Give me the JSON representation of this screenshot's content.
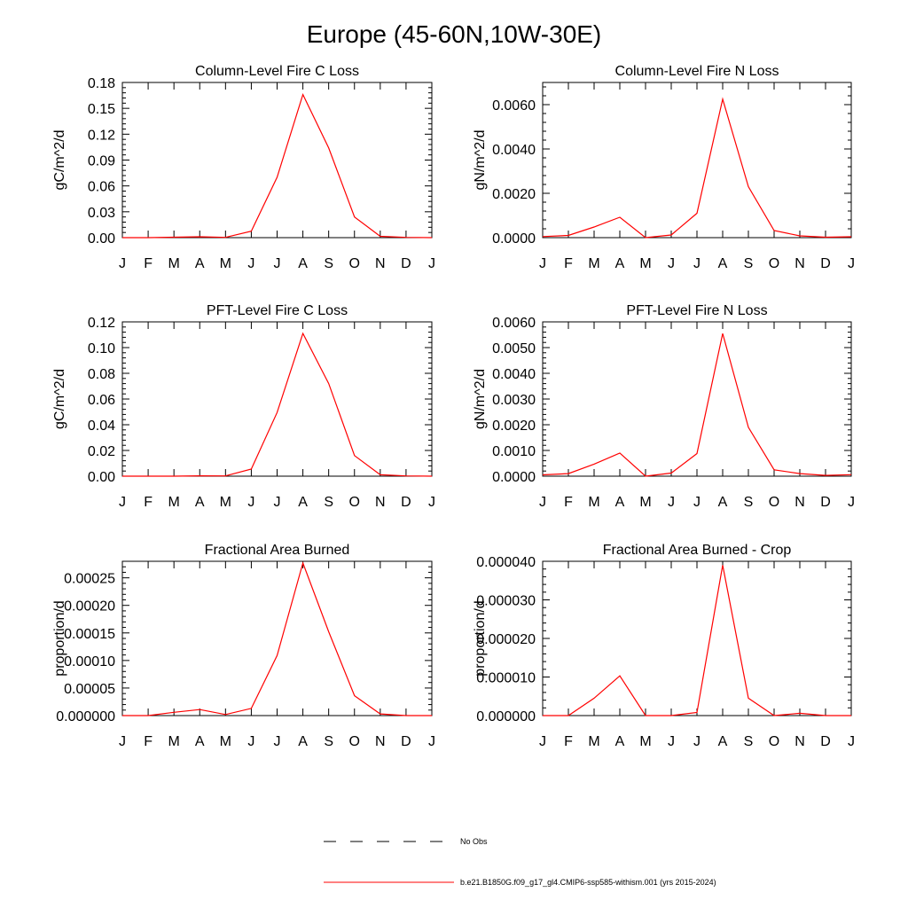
{
  "figure_title": "Europe (45-60N,10W-30E)",
  "months": [
    "J",
    "F",
    "M",
    "A",
    "M",
    "J",
    "J",
    "A",
    "S",
    "O",
    "N",
    "D",
    "J"
  ],
  "colors": {
    "series": "#ff0000",
    "axis": "#000000",
    "obs": "#000000"
  },
  "legend": {
    "obs_label": "No Obs",
    "model_label": "b.e21.B1850G.f09_g17_gl4.CMIP6-ssp585-withism.001 (yrs 2015-2024)"
  },
  "chart_data": [
    {
      "type": "line",
      "title": "Column-Level Fire C Loss",
      "ylabel": "gC/m^2/d",
      "ylim": [
        0,
        0.18
      ],
      "yticks": [
        "0.00",
        "0.03",
        "0.06",
        "0.09",
        "0.12",
        "0.15",
        "0.18"
      ],
      "x": [
        "J",
        "F",
        "M",
        "A",
        "M",
        "J",
        "J",
        "A",
        "S",
        "O",
        "N",
        "D",
        "J"
      ],
      "series": [
        {
          "values": [
            0,
            0,
            0.0005,
            0.001,
            0.0003,
            0.0075,
            0.07,
            0.166,
            0.104,
            0.024,
            0.0015,
            0.0003,
            0
          ]
        }
      ]
    },
    {
      "type": "line",
      "title": "Column-Level Fire N Loss",
      "ylabel": "gN/m^2/d",
      "ylim": [
        0,
        0.007
      ],
      "yticks": [
        "0.0000",
        "0.0020",
        "0.0040",
        "0.0060"
      ],
      "x": [
        "J",
        "F",
        "M",
        "A",
        "M",
        "J",
        "J",
        "A",
        "S",
        "O",
        "N",
        "D",
        "J"
      ],
      "series": [
        {
          "values": [
            5e-05,
            0.0001,
            0.00048,
            0.00092,
            0.0,
            0.00012,
            0.0011,
            0.00625,
            0.0023,
            0.00032,
            8e-05,
            2e-05,
            4e-05
          ]
        }
      ]
    },
    {
      "type": "line",
      "title": "PFT-Level Fire C Loss",
      "ylabel": "gC/m^2/d",
      "ylim": [
        0,
        0.12
      ],
      "yticks": [
        "0.00",
        "0.02",
        "0.04",
        "0.06",
        "0.08",
        "0.10",
        "0.12"
      ],
      "x": [
        "J",
        "F",
        "M",
        "A",
        "M",
        "J",
        "J",
        "A",
        "S",
        "O",
        "N",
        "D",
        "J"
      ],
      "series": [
        {
          "values": [
            0,
            0,
            0,
            0.0003,
            0.0002,
            0.0055,
            0.0495,
            0.111,
            0.072,
            0.016,
            0.0011,
            0.0002,
            0
          ]
        }
      ]
    },
    {
      "type": "line",
      "title": "PFT-Level Fire N Loss",
      "ylabel": "gN/m^2/d",
      "ylim": [
        0,
        0.006
      ],
      "yticks": [
        "0.0000",
        "0.0010",
        "0.0020",
        "0.0030",
        "0.0040",
        "0.0050",
        "0.0060"
      ],
      "x": [
        "J",
        "F",
        "M",
        "A",
        "M",
        "J",
        "J",
        "A",
        "S",
        "O",
        "N",
        "D",
        "J"
      ],
      "series": [
        {
          "values": [
            5e-05,
            0.0001,
            0.00047,
            0.0009,
            0.0,
            0.00012,
            0.00088,
            0.00555,
            0.0019,
            0.00025,
            0.0001,
            3e-05,
            6e-05
          ]
        }
      ]
    },
    {
      "type": "line",
      "title": "Fractional Area Burned",
      "ylabel": "proportion/d",
      "ylim": [
        0,
        0.00028
      ],
      "yticks": [
        "0.000000",
        "0.00005",
        "0.00010",
        "0.00015",
        "0.00020",
        "0.00025"
      ],
      "x": [
        "J",
        "F",
        "M",
        "A",
        "M",
        "J",
        "J",
        "A",
        "S",
        "O",
        "N",
        "D",
        "J"
      ],
      "series": [
        {
          "values": [
            0,
            0,
            6e-06,
            1.1e-05,
            2e-06,
            1.3e-05,
            0.000109,
            0.000277,
            0.000152,
            3.6e-05,
            3e-06,
            0,
            0
          ]
        }
      ]
    },
    {
      "type": "line",
      "title": "Fractional Area Burned - Crop",
      "ylabel": "proportion/d",
      "ylim": [
        0,
        4e-05
      ],
      "yticks": [
        "0.000000",
        "0.000010",
        "0.000020",
        "0.000030",
        "0.000040"
      ],
      "x": [
        "J",
        "F",
        "M",
        "A",
        "M",
        "J",
        "J",
        "A",
        "S",
        "O",
        "N",
        "D",
        "J"
      ],
      "series": [
        {
          "values": [
            0,
            0,
            4.5e-06,
            1.03e-05,
            0,
            0,
            8e-07,
            3.9e-05,
            4.5e-06,
            0,
            6e-07,
            0,
            0
          ]
        }
      ]
    }
  ]
}
